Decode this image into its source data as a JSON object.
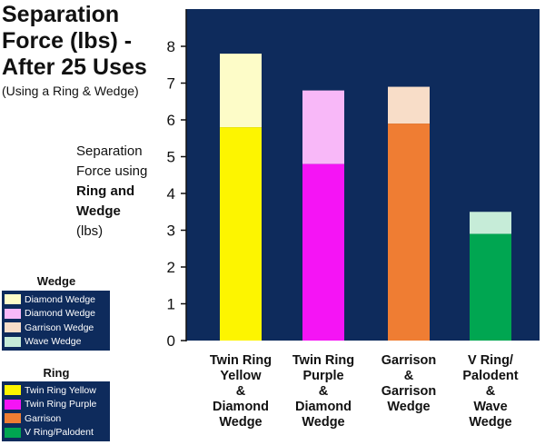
{
  "title": "Separation Force (lbs) - After 25 Uses",
  "subtitle": "(Using a Ring & Wedge)",
  "ylabel_lines": [
    {
      "text": "Separation",
      "bold": false
    },
    {
      "text": "Force using",
      "bold": false
    },
    {
      "text": "Ring and",
      "bold": true
    },
    {
      "text": "Wedge",
      "bold": true
    },
    {
      "text": "(lbs)",
      "bold": false
    }
  ],
  "legends": {
    "wedge": {
      "title": "Wedge",
      "items": [
        {
          "label": "Diamond Wedge",
          "color": "#fdfcc8"
        },
        {
          "label": "Diamond Wedge",
          "color": "#f8b8f8"
        },
        {
          "label": "Garrison Wedge",
          "color": "#f8ddc8"
        },
        {
          "label": "Wave Wedge",
          "color": "#c6ecd8"
        }
      ]
    },
    "ring": {
      "title": "Ring",
      "items": [
        {
          "label": "Twin Ring Yellow",
          "color": "#fdf500"
        },
        {
          "label": "Twin Ring Purple",
          "color": "#f514f5"
        },
        {
          "label": "Garrison",
          "color": "#ef7d33"
        },
        {
          "label": "V Ring/Palodent",
          "color": "#00a651"
        }
      ]
    }
  },
  "chart_data": {
    "type": "bar",
    "stacked": true,
    "plot_background": "#0e2b5c",
    "categories": [
      [
        "Twin Ring",
        "Yellow",
        "&",
        "Diamond",
        "Wedge"
      ],
      [
        "Twin Ring",
        "Purple",
        "&",
        "Diamond",
        "Wedge"
      ],
      [
        "Garrison",
        "&",
        "Garrison",
        "Wedge"
      ],
      [
        "V Ring/",
        "Palodent",
        "&",
        "Wave",
        "Wedge"
      ]
    ],
    "ring_values": [
      5.8,
      4.8,
      5.9,
      2.9
    ],
    "totals": [
      7.8,
      6.8,
      6.9,
      3.5
    ],
    "ring_colors": [
      "#fdf500",
      "#f514f5",
      "#ef7d33",
      "#00a651"
    ],
    "wedge_colors": [
      "#fdfcc8",
      "#f8b8f8",
      "#f8ddc8",
      "#c6ecd8"
    ],
    "ylim": [
      0,
      9
    ],
    "yticks": [
      "0",
      "1",
      "2",
      "3",
      "4",
      "5",
      "6",
      "7",
      "8"
    ]
  }
}
